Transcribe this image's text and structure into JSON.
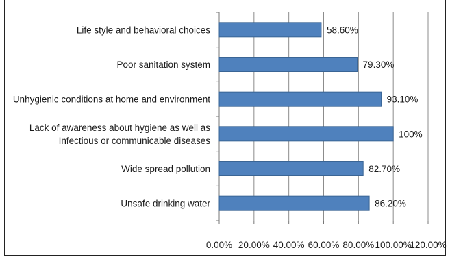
{
  "chart_data": {
    "type": "bar",
    "orientation": "horizontal",
    "categories": [
      [
        "Life style and behavioral choices"
      ],
      [
        "Poor sanitation system"
      ],
      [
        "Unhygienic conditions at home and environment"
      ],
      [
        "Lack of awareness about hygiene as well as",
        "Infectious or communicable diseases"
      ],
      [
        "Wide spread pollution"
      ],
      [
        "Unsafe drinking water"
      ]
    ],
    "values": [
      58.6,
      79.3,
      93.1,
      100,
      82.7,
      86.2
    ],
    "value_labels": [
      "58.60%",
      "79.30%",
      "93.10%",
      "100%",
      "82.70%",
      "86.20%"
    ],
    "xlim": [
      0,
      120
    ],
    "x_ticks": [
      0,
      20,
      40,
      60,
      80,
      100,
      120
    ],
    "x_tick_labels": [
      "0.00%",
      "20.00%",
      "40.00%",
      "60.00%",
      "80.00%",
      "100.00%",
      "120.00%"
    ],
    "grid": "vertical",
    "title": "",
    "xlabel": "",
    "ylabel": "",
    "colors": {
      "bar": "#4F81BD",
      "bar_edge": "#3A6595",
      "grid": "#8c8c8c",
      "axis": "#777777"
    }
  }
}
